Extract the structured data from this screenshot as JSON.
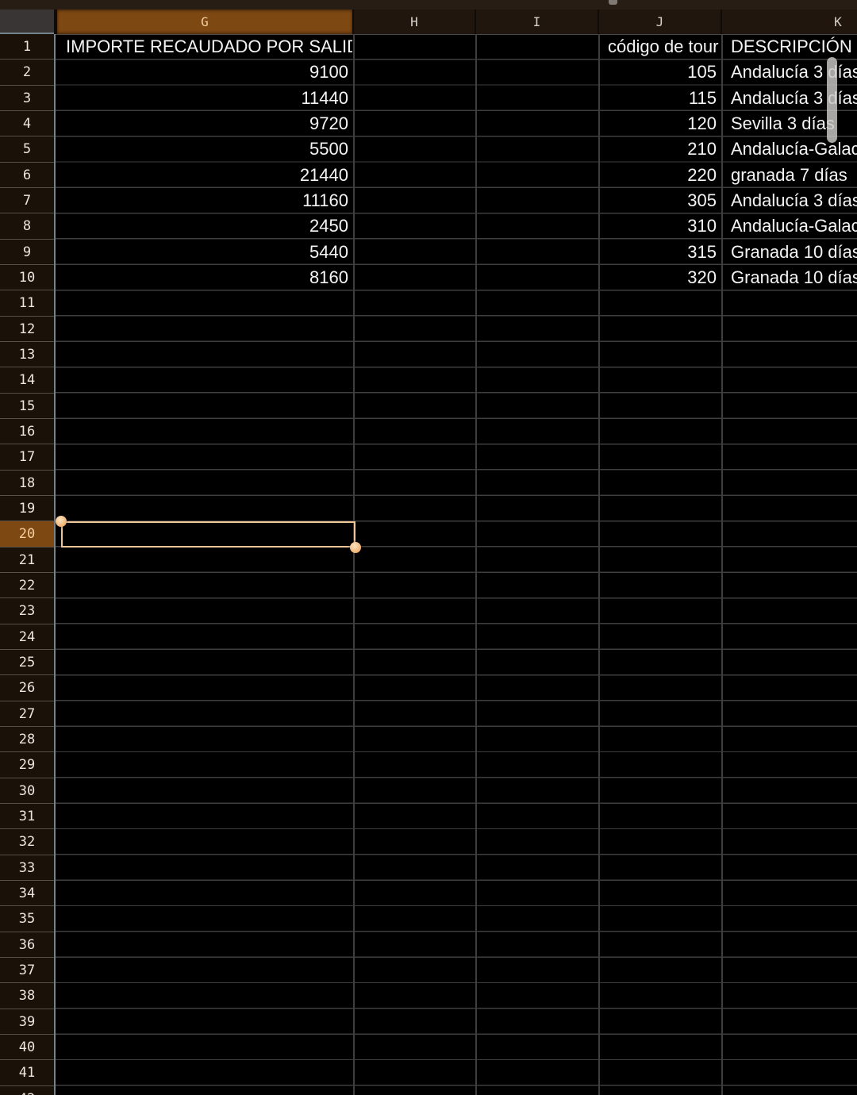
{
  "sheet": {
    "columns": [
      {
        "label": "G",
        "selected": true
      },
      {
        "label": "H",
        "selected": false
      },
      {
        "label": "I",
        "selected": false
      },
      {
        "label": "J",
        "selected": false
      },
      {
        "label": "K",
        "selected": false
      }
    ],
    "row_count": 42,
    "selection": {
      "cell": "G20",
      "column": "G",
      "row": 20
    },
    "cells": [
      {
        "col": "G",
        "row": 1,
        "text": "IMPORTE RECAUDADO POR SALIDA",
        "align": "left"
      },
      {
        "col": "G",
        "row": 2,
        "text": "9100",
        "align": "right"
      },
      {
        "col": "G",
        "row": 3,
        "text": "11440",
        "align": "right"
      },
      {
        "col": "G",
        "row": 4,
        "text": "9720",
        "align": "right"
      },
      {
        "col": "G",
        "row": 5,
        "text": "5500",
        "align": "right"
      },
      {
        "col": "G",
        "row": 6,
        "text": "21440",
        "align": "right"
      },
      {
        "col": "G",
        "row": 7,
        "text": "11160",
        "align": "right"
      },
      {
        "col": "G",
        "row": 8,
        "text": "2450",
        "align": "right"
      },
      {
        "col": "G",
        "row": 9,
        "text": "5440",
        "align": "right"
      },
      {
        "col": "G",
        "row": 10,
        "text": "8160",
        "align": "right"
      },
      {
        "col": "J",
        "row": 1,
        "text": "código de tour",
        "align": "left"
      },
      {
        "col": "J",
        "row": 2,
        "text": "105",
        "align": "right"
      },
      {
        "col": "J",
        "row": 3,
        "text": "115",
        "align": "right"
      },
      {
        "col": "J",
        "row": 4,
        "text": "120",
        "align": "right"
      },
      {
        "col": "J",
        "row": 5,
        "text": "210",
        "align": "right"
      },
      {
        "col": "J",
        "row": 6,
        "text": "220",
        "align": "right"
      },
      {
        "col": "J",
        "row": 7,
        "text": "305",
        "align": "right"
      },
      {
        "col": "J",
        "row": 8,
        "text": "310",
        "align": "right"
      },
      {
        "col": "J",
        "row": 9,
        "text": "315",
        "align": "right"
      },
      {
        "col": "J",
        "row": 10,
        "text": "320",
        "align": "right"
      },
      {
        "col": "K",
        "row": 1,
        "text": "DESCRIPCIÓN D",
        "align": "left"
      },
      {
        "col": "K",
        "row": 2,
        "text": "Andalucía 3 días",
        "align": "left"
      },
      {
        "col": "K",
        "row": 3,
        "text": "Andalucía 3 días",
        "align": "left"
      },
      {
        "col": "K",
        "row": 4,
        "text": "Sevilla 3 días",
        "align": "left"
      },
      {
        "col": "K",
        "row": 5,
        "text": "Andalucía-Galacia",
        "align": "left"
      },
      {
        "col": "K",
        "row": 6,
        "text": "granada 7 días",
        "align": "left"
      },
      {
        "col": "K",
        "row": 7,
        "text": "Andalucía 3 días",
        "align": "left"
      },
      {
        "col": "K",
        "row": 8,
        "text": "Andalucía-Galacia",
        "align": "left"
      },
      {
        "col": "K",
        "row": 9,
        "text": "Granada 10 días",
        "align": "left"
      },
      {
        "col": "K",
        "row": 10,
        "text": "Granada 10 días",
        "align": "left"
      }
    ],
    "scrollbar_visible": true
  },
  "colors": {
    "background": "#000000",
    "gridline": "#3e3e3e",
    "column_header_bg": "#20160e",
    "column_header_text": "#d6d1cb",
    "selected_header_bg": "#7e4813",
    "selected_header_text": "#f4cf9e",
    "row_header_bg": "#1a1109",
    "row_header_text": "#ece6df",
    "cell_text": "#f4f4f4",
    "selection_border": "#efc497",
    "selection_handle": "#eb9d52",
    "scrollbar": "#c9c7c4",
    "corner_bg": "#3a3535",
    "top_strip": "#271d15"
  }
}
